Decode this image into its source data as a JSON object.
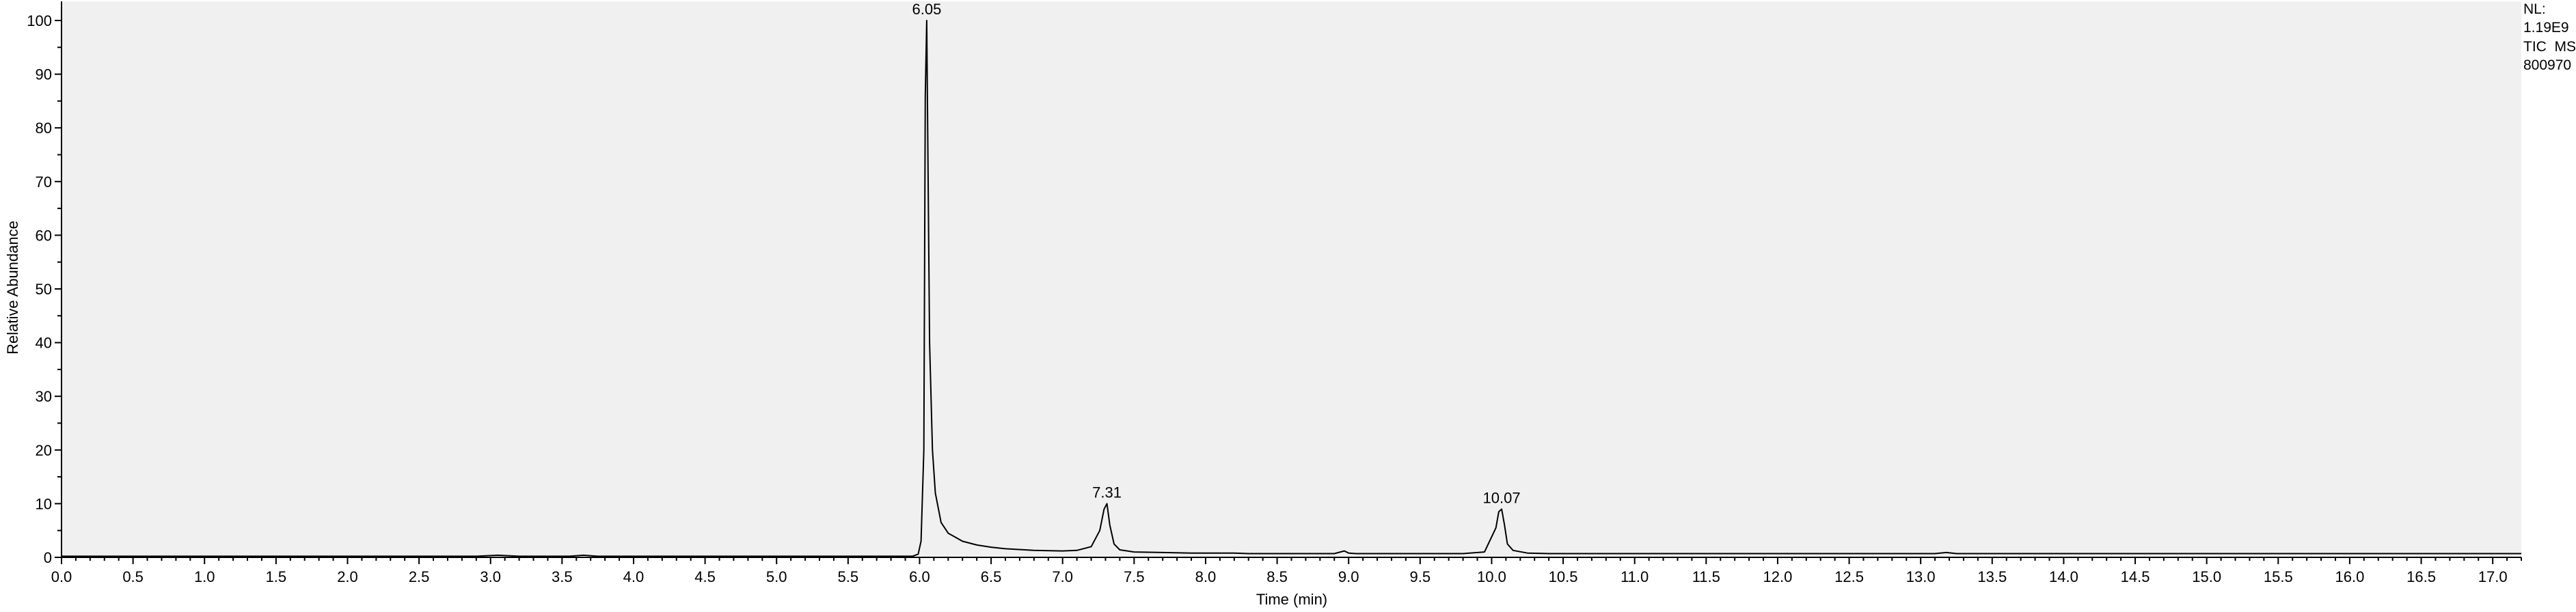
{
  "chart_data": {
    "type": "line",
    "xlabel": "Time (min)",
    "ylabel": "Relative Abundance",
    "xlim": [
      0.0,
      17.2
    ],
    "ylim": [
      0,
      100
    ],
    "x_ticks": [
      "0.0",
      "0.5",
      "1.0",
      "1.5",
      "2.0",
      "2.5",
      "3.0",
      "3.5",
      "4.0",
      "4.5",
      "5.0",
      "5.5",
      "6.0",
      "6.5",
      "7.0",
      "7.5",
      "8.0",
      "8.5",
      "9.0",
      "9.5",
      "10.0",
      "10.5",
      "11.0",
      "11.5",
      "12.0",
      "12.5",
      "13.0",
      "13.5",
      "14.0",
      "14.5",
      "15.0",
      "15.5",
      "16.0",
      "16.5",
      "17.0"
    ],
    "y_ticks": [
      "0",
      "10",
      "20",
      "30",
      "40",
      "50",
      "60",
      "70",
      "80",
      "90",
      "100"
    ],
    "grid": false,
    "colors": {
      "plot_background": "#f0f0f0",
      "trace": "#000000",
      "axis": "#000000"
    },
    "peaks": [
      {
        "label": "6.05",
        "x": 6.05,
        "y": 100
      },
      {
        "label": "7.31",
        "x": 7.31,
        "y": 10
      },
      {
        "label": "10.07",
        "x": 10.07,
        "y": 9
      }
    ],
    "series": [
      {
        "x": [
          0.0,
          2.9,
          3.05,
          3.2,
          3.55,
          3.65,
          3.75,
          5.95,
          5.99,
          6.01,
          6.03,
          6.04,
          6.05,
          6.06,
          6.07,
          6.09,
          6.11,
          6.15,
          6.2,
          6.3,
          6.4,
          6.5,
          6.6,
          6.8,
          7.0,
          7.1,
          7.2,
          7.26,
          7.29,
          7.31,
          7.33,
          7.36,
          7.4,
          7.5,
          7.7,
          7.9,
          8.0,
          8.2,
          8.3,
          8.9,
          8.97,
          9.0,
          9.05,
          9.8,
          9.95,
          10.03,
          10.05,
          10.07,
          10.09,
          10.11,
          10.15,
          10.25,
          10.4,
          11.0,
          13.1,
          13.18,
          13.25,
          17.2
        ],
        "y": [
          0.2,
          0.2,
          0.4,
          0.2,
          0.2,
          0.4,
          0.2,
          0.2,
          0.6,
          3.0,
          20.0,
          86.0,
          100.0,
          70.0,
          40.0,
          20.0,
          12.0,
          6.5,
          4.5,
          3.0,
          2.3,
          1.9,
          1.6,
          1.3,
          1.2,
          1.3,
          2.0,
          5.0,
          9.0,
          10.0,
          6.0,
          2.5,
          1.4,
          1.0,
          0.9,
          0.8,
          0.8,
          0.8,
          0.7,
          0.7,
          1.2,
          0.8,
          0.7,
          0.7,
          1.0,
          5.5,
          8.5,
          9.0,
          6.0,
          2.5,
          1.3,
          0.8,
          0.7,
          0.7,
          0.7,
          0.9,
          0.7,
          0.7
        ]
      }
    ]
  },
  "info": {
    "lines": [
      "NL:",
      "1.19E9",
      "TIC  MS",
      "800970"
    ]
  }
}
